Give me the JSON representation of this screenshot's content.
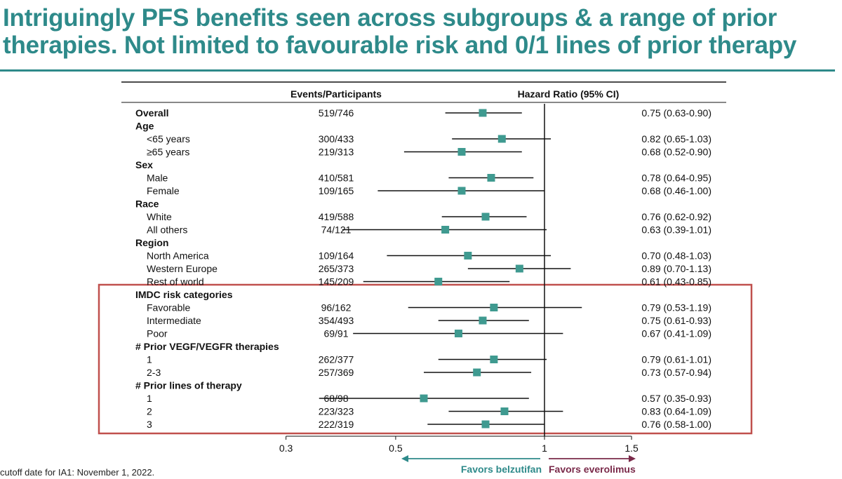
{
  "title": {
    "line1": "Intriguingly PFS benefits seen across subgroups & a range of prior",
    "line2": "therapies. Not limited to favourable risk and 0/1 lines of prior therapy"
  },
  "footnote": "cutoff date for IA1: November 1, 2022.",
  "colors": {
    "accent": "#2e8a8a",
    "marker": "#3f9a90",
    "highlight_box": "#c0504d",
    "favors_left": "#2e8a8a",
    "favors_right": "#7a2a4a"
  },
  "chart_data": {
    "type": "forest",
    "headers": {
      "events": "Events/Participants",
      "hr": "Hazard Ratio (95% CI)"
    },
    "rows": [
      {
        "label": "Overall",
        "header": true,
        "events": "519/746",
        "hr": 0.75,
        "lo": 0.63,
        "hi": 0.9,
        "ci_text": "0.75 (0.63-0.90)"
      },
      {
        "label": "Age",
        "header": true
      },
      {
        "label": "<65 years",
        "events": "300/433",
        "hr": 0.82,
        "lo": 0.65,
        "hi": 1.03,
        "ci_text": "0.82 (0.65-1.03)"
      },
      {
        "label": "≥65 years",
        "events": "219/313",
        "hr": 0.68,
        "lo": 0.52,
        "hi": 0.9,
        "ci_text": "0.68 (0.52-0.90)"
      },
      {
        "label": "Sex",
        "header": true
      },
      {
        "label": "Male",
        "events": "410/581",
        "hr": 0.78,
        "lo": 0.64,
        "hi": 0.95,
        "ci_text": "0.78 (0.64-0.95)"
      },
      {
        "label": "Female",
        "events": "109/165",
        "hr": 0.68,
        "lo": 0.46,
        "hi": 1.0,
        "ci_text": "0.68 (0.46-1.00)"
      },
      {
        "label": "Race",
        "header": true
      },
      {
        "label": "White",
        "events": "419/588",
        "hr": 0.76,
        "lo": 0.62,
        "hi": 0.92,
        "ci_text": "0.76 (0.62-0.92)"
      },
      {
        "label": "All others",
        "events": "74/121",
        "hr": 0.63,
        "lo": 0.39,
        "hi": 1.01,
        "ci_text": "0.63 (0.39-1.01)"
      },
      {
        "label": "Region",
        "header": true
      },
      {
        "label": "North America",
        "events": "109/164",
        "hr": 0.7,
        "lo": 0.48,
        "hi": 1.03,
        "ci_text": "0.70 (0.48-1.03)"
      },
      {
        "label": "Western Europe",
        "events": "265/373",
        "hr": 0.89,
        "lo": 0.7,
        "hi": 1.13,
        "ci_text": "0.89 (0.70-1.13)"
      },
      {
        "label": "Rest of world",
        "events": "145/209",
        "hr": 0.61,
        "lo": 0.43,
        "hi": 0.85,
        "ci_text": "0.61 (0.43-0.85)"
      },
      {
        "label": "IMDC risk categories",
        "header": true
      },
      {
        "label": "Favorable",
        "events": "96/162",
        "hr": 0.79,
        "lo": 0.53,
        "hi": 1.19,
        "ci_text": "0.79 (0.53-1.19)"
      },
      {
        "label": "Intermediate",
        "events": "354/493",
        "hr": 0.75,
        "lo": 0.61,
        "hi": 0.93,
        "ci_text": "0.75 (0.61-0.93)"
      },
      {
        "label": "Poor",
        "events": "69/91",
        "hr": 0.67,
        "lo": 0.41,
        "hi": 1.09,
        "ci_text": "0.67 (0.41-1.09)"
      },
      {
        "label": "# Prior VEGF/VEGFR therapies",
        "header": true
      },
      {
        "label": "1",
        "events": "262/377",
        "hr": 0.79,
        "lo": 0.61,
        "hi": 1.01,
        "ci_text": "0.79 (0.61-1.01)"
      },
      {
        "label": "2-3",
        "events": "257/369",
        "hr": 0.73,
        "lo": 0.57,
        "hi": 0.94,
        "ci_text": "0.73 (0.57-0.94)"
      },
      {
        "label": "# Prior lines of therapy",
        "header": true
      },
      {
        "label": "1",
        "events": "68/98",
        "hr": 0.57,
        "lo": 0.35,
        "hi": 0.93,
        "ci_text": "0.57 (0.35-0.93)"
      },
      {
        "label": "2",
        "events": "223/323",
        "hr": 0.83,
        "lo": 0.64,
        "hi": 1.09,
        "ci_text": "0.83 (0.64-1.09)"
      },
      {
        "label": "3",
        "events": "222/319",
        "hr": 0.76,
        "lo": 0.58,
        "hi": 1.0,
        "ci_text": "0.76 (0.58-1.00)"
      }
    ],
    "x_scale": "log",
    "x_ticks": [
      0.3,
      0.5,
      1,
      1.5
    ],
    "x_tick_labels": [
      "0.3",
      "0.5",
      "1",
      "1.5"
    ],
    "reference_line": 1,
    "favors_left": "Favors belzutifan",
    "favors_right": "Favors everolimus",
    "highlighted_rows": [
      "IMDC risk categories",
      "# Prior VEGF/VEGFR therapies",
      "# Prior lines of therapy"
    ]
  }
}
